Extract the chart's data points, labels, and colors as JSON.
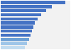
{
  "values": [
    88,
    70,
    62,
    55,
    50,
    47,
    45,
    43,
    41,
    39,
    36,
    33
  ],
  "bar_colors": [
    "#4472c4",
    "#4472c4",
    "#4472c4",
    "#4472c4",
    "#4472c4",
    "#4472c4",
    "#4472c4",
    "#4472c4",
    "#4472c4",
    "#6b9fd4",
    "#9ec5e8",
    "#c2dcf0"
  ],
  "background_color": "#ffffff",
  "plot_bg_color": "#f2f2f2",
  "bar_height": 0.75,
  "xlim": [
    0,
    95
  ],
  "n_bars": 12,
  "grid_color": "#ffffff",
  "grid_linewidth": 0.8
}
